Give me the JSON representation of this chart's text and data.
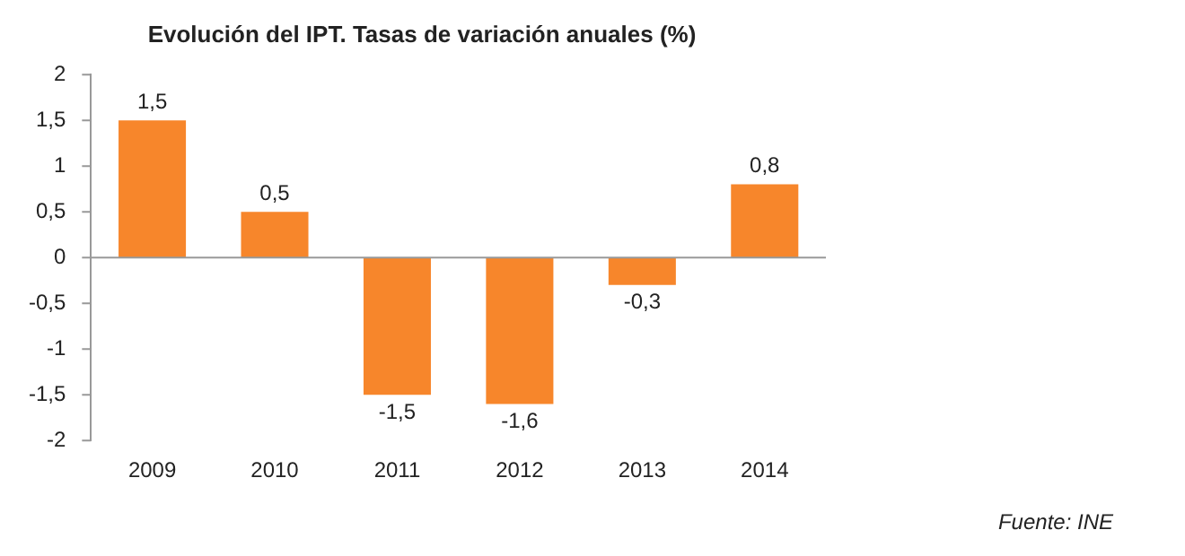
{
  "chart_data": {
    "type": "bar",
    "title": "Evolución del IPT. Tasas de variación anuales (%)",
    "categories": [
      "2009",
      "2010",
      "2011",
      "2012",
      "2013",
      "2014"
    ],
    "values": [
      1.5,
      0.5,
      -1.5,
      -1.6,
      -0.3,
      0.8
    ],
    "value_labels": [
      "1,5",
      "0,5",
      "-1,5",
      "-1,6",
      "-0,3",
      "0,8"
    ],
    "color": "#f7862b",
    "ylim": [
      -2,
      2
    ],
    "yticks": [
      {
        "value": -2,
        "label": "-2"
      },
      {
        "value": -1.5,
        "label": "-1,5"
      },
      {
        "value": -1,
        "label": "-1"
      },
      {
        "value": -0.5,
        "label": "-0,5"
      },
      {
        "value": 0,
        "label": "0"
      },
      {
        "value": 0.5,
        "label": "0,5"
      },
      {
        "value": 1,
        "label": "1"
      },
      {
        "value": 1.5,
        "label": "1,5"
      },
      {
        "value": 2,
        "label": "2"
      }
    ],
    "legend": false,
    "annotations": [
      "Fuente: INE"
    ]
  }
}
